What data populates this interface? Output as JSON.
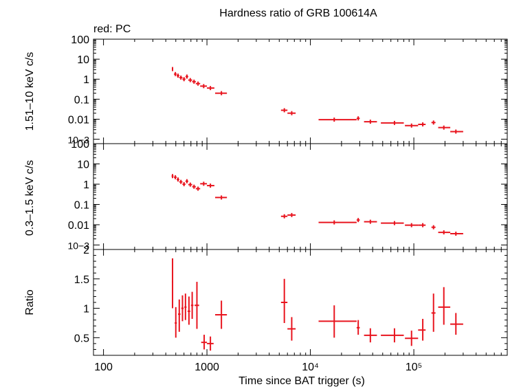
{
  "title": "Hardness ratio of GRB 100614A",
  "annotation": "red: PC",
  "colors": {
    "series": "#e8141e",
    "axis": "#000000"
  },
  "chart_data": [
    {
      "type": "scatter",
      "panel": "hard",
      "xscale": "log",
      "yscale": "log",
      "ylabel": "1.51–10 keV c/s",
      "ylabel_shared": "0.3–1.5 keV c/s",
      "ylim": [
        0.0006,
        100
      ],
      "ytick_labels": [
        "100",
        "10",
        "1",
        "0.1",
        "0.01",
        "10−3"
      ],
      "points": [
        {
          "x": 465,
          "y": 3.2,
          "xlo": 458,
          "xhi": 472
        },
        {
          "x": 495,
          "y": 1.8,
          "xlo": 480,
          "xhi": 510
        },
        {
          "x": 525,
          "y": 1.5,
          "xlo": 510,
          "xhi": 540
        },
        {
          "x": 560,
          "y": 1.2,
          "xlo": 540,
          "xhi": 580
        },
        {
          "x": 600,
          "y": 1.0,
          "xlo": 580,
          "xhi": 620
        },
        {
          "x": 640,
          "y": 1.35,
          "xlo": 620,
          "xhi": 660
        },
        {
          "x": 690,
          "y": 0.9,
          "xlo": 660,
          "xhi": 720
        },
        {
          "x": 750,
          "y": 0.75,
          "xlo": 720,
          "xhi": 780
        },
        {
          "x": 820,
          "y": 0.6,
          "xlo": 780,
          "xhi": 860
        },
        {
          "x": 930,
          "y": 0.45,
          "xlo": 860,
          "xhi": 1000
        },
        {
          "x": 1080,
          "y": 0.36,
          "xlo": 1000,
          "xhi": 1180
        },
        {
          "x": 1380,
          "y": 0.2,
          "xlo": 1200,
          "xhi": 1560
        },
        {
          "x": 5600,
          "y": 0.028,
          "xlo": 5200,
          "xhi": 6000
        },
        {
          "x": 6600,
          "y": 0.02,
          "xlo": 6000,
          "xhi": 7200
        },
        {
          "x": 17000,
          "y": 0.0095,
          "xlo": 12000,
          "xhi": 28000
        },
        {
          "x": 29000,
          "y": 0.011,
          "xlo": 28000,
          "xhi": 30000
        },
        {
          "x": 38000,
          "y": 0.0075,
          "xlo": 33000,
          "xhi": 44000
        },
        {
          "x": 65000,
          "y": 0.0065,
          "xlo": 48000,
          "xhi": 80000
        },
        {
          "x": 95000,
          "y": 0.0048,
          "xlo": 82000,
          "xhi": 110000
        },
        {
          "x": 122000,
          "y": 0.0055,
          "xlo": 110000,
          "xhi": 130000
        },
        {
          "x": 155000,
          "y": 0.0068,
          "xlo": 148000,
          "xhi": 162000
        },
        {
          "x": 195000,
          "y": 0.0038,
          "xlo": 172000,
          "xhi": 225000
        },
        {
          "x": 255000,
          "y": 0.0024,
          "xlo": 225000,
          "xhi": 300000
        }
      ]
    },
    {
      "type": "scatter",
      "panel": "soft",
      "xscale": "log",
      "yscale": "log",
      "ylabel": "0.3–1.5 keV c/s",
      "ylim": [
        0.0006,
        100
      ],
      "ytick_labels": [
        "100",
        "10",
        "1",
        "0.1",
        "0.01",
        "10−3"
      ],
      "points": [
        {
          "x": 465,
          "y": 2.5,
          "xlo": 455,
          "xhi": 475
        },
        {
          "x": 495,
          "y": 2.2,
          "xlo": 480,
          "xhi": 510
        },
        {
          "x": 525,
          "y": 1.7,
          "xlo": 510,
          "xhi": 540
        },
        {
          "x": 560,
          "y": 1.3,
          "xlo": 540,
          "xhi": 580
        },
        {
          "x": 600,
          "y": 1.0,
          "xlo": 580,
          "xhi": 620
        },
        {
          "x": 640,
          "y": 1.4,
          "xlo": 620,
          "xhi": 660
        },
        {
          "x": 690,
          "y": 0.95,
          "xlo": 660,
          "xhi": 720
        },
        {
          "x": 750,
          "y": 0.75,
          "xlo": 720,
          "xhi": 780
        },
        {
          "x": 820,
          "y": 0.6,
          "xlo": 780,
          "xhi": 860
        },
        {
          "x": 930,
          "y": 1.05,
          "xlo": 860,
          "xhi": 1000
        },
        {
          "x": 1080,
          "y": 0.85,
          "xlo": 1000,
          "xhi": 1180
        },
        {
          "x": 1380,
          "y": 0.22,
          "xlo": 1200,
          "xhi": 1560
        },
        {
          "x": 5600,
          "y": 0.026,
          "xlo": 5200,
          "xhi": 6000
        },
        {
          "x": 6600,
          "y": 0.03,
          "xlo": 6000,
          "xhi": 7200
        },
        {
          "x": 17000,
          "y": 0.013,
          "xlo": 12000,
          "xhi": 28000
        },
        {
          "x": 29000,
          "y": 0.017,
          "xlo": 28000,
          "xhi": 30000
        },
        {
          "x": 38000,
          "y": 0.014,
          "xlo": 33000,
          "xhi": 44000
        },
        {
          "x": 65000,
          "y": 0.012,
          "xlo": 48000,
          "xhi": 80000
        },
        {
          "x": 95000,
          "y": 0.0095,
          "xlo": 82000,
          "xhi": 110000
        },
        {
          "x": 122000,
          "y": 0.0095,
          "xlo": 110000,
          "xhi": 130000
        },
        {
          "x": 155000,
          "y": 0.0075,
          "xlo": 148000,
          "xhi": 162000
        },
        {
          "x": 195000,
          "y": 0.0042,
          "xlo": 172000,
          "xhi": 225000
        },
        {
          "x": 255000,
          "y": 0.0036,
          "xlo": 225000,
          "xhi": 300000
        }
      ]
    },
    {
      "type": "scatter",
      "panel": "ratio",
      "xscale": "log",
      "yscale": "linear",
      "ylabel": "Ratio",
      "xlabel": "Time since BAT trigger (s)",
      "xlim": [
        80,
        800000
      ],
      "xtick_labels": [
        "100",
        "1000",
        "10⁴",
        "10⁵"
      ],
      "ylim": [
        0.2,
        2.0
      ],
      "ytick_labels": [
        "2",
        "1.5",
        "1",
        "0.5"
      ],
      "points": [
        {
          "x": 465,
          "y": 1.45,
          "xlo": 458,
          "xhi": 472,
          "ylo": 1.0,
          "yhi": 1.85
        },
        {
          "x": 500,
          "y": 0.75,
          "xlo": 488,
          "xhi": 512,
          "ylo": 0.5,
          "yhi": 1.02
        },
        {
          "x": 540,
          "y": 0.9,
          "xlo": 525,
          "xhi": 555,
          "ylo": 0.6,
          "yhi": 1.15
        },
        {
          "x": 580,
          "y": 1.0,
          "xlo": 565,
          "xhi": 595,
          "ylo": 0.78,
          "yhi": 1.22
        },
        {
          "x": 620,
          "y": 1.02,
          "xlo": 605,
          "xhi": 635,
          "ylo": 0.8,
          "yhi": 1.25
        },
        {
          "x": 670,
          "y": 0.95,
          "xlo": 650,
          "xhi": 690,
          "ylo": 0.72,
          "yhi": 1.2
        },
        {
          "x": 720,
          "y": 1.05,
          "xlo": 700,
          "xhi": 740,
          "ylo": 0.82,
          "yhi": 1.28
        },
        {
          "x": 800,
          "y": 1.05,
          "xlo": 760,
          "xhi": 840,
          "ylo": 0.65,
          "yhi": 1.45
        },
        {
          "x": 940,
          "y": 0.42,
          "xlo": 880,
          "xhi": 1000,
          "ylo": 0.3,
          "yhi": 0.55
        },
        {
          "x": 1080,
          "y": 0.4,
          "xlo": 1000,
          "xhi": 1160,
          "ylo": 0.28,
          "yhi": 0.52
        },
        {
          "x": 1380,
          "y": 0.89,
          "xlo": 1200,
          "xhi": 1560,
          "ylo": 0.65,
          "yhi": 1.13
        },
        {
          "x": 5600,
          "y": 1.1,
          "xlo": 5200,
          "xhi": 6000,
          "ylo": 0.75,
          "yhi": 1.5
        },
        {
          "x": 6600,
          "y": 0.65,
          "xlo": 6000,
          "xhi": 7200,
          "ylo": 0.45,
          "yhi": 0.85
        },
        {
          "x": 17000,
          "y": 0.78,
          "xlo": 12000,
          "xhi": 28000,
          "ylo": 0.5,
          "yhi": 1.05
        },
        {
          "x": 29000,
          "y": 0.67,
          "xlo": 28000,
          "xhi": 30000,
          "ylo": 0.55,
          "yhi": 0.8
        },
        {
          "x": 38000,
          "y": 0.54,
          "xlo": 33000,
          "xhi": 44000,
          "ylo": 0.42,
          "yhi": 0.66
        },
        {
          "x": 65000,
          "y": 0.54,
          "xlo": 48000,
          "xhi": 80000,
          "ylo": 0.42,
          "yhi": 0.66
        },
        {
          "x": 95000,
          "y": 0.49,
          "xlo": 82000,
          "xhi": 110000,
          "ylo": 0.36,
          "yhi": 0.62
        },
        {
          "x": 122000,
          "y": 0.63,
          "xlo": 110000,
          "xhi": 130000,
          "ylo": 0.45,
          "yhi": 0.82
        },
        {
          "x": 155000,
          "y": 0.92,
          "xlo": 148000,
          "xhi": 162000,
          "ylo": 0.6,
          "yhi": 1.25
        },
        {
          "x": 195000,
          "y": 1.02,
          "xlo": 172000,
          "xhi": 225000,
          "ylo": 0.72,
          "yhi": 1.36
        },
        {
          "x": 255000,
          "y": 0.73,
          "xlo": 225000,
          "xhi": 300000,
          "ylo": 0.55,
          "yhi": 0.92
        }
      ]
    }
  ]
}
